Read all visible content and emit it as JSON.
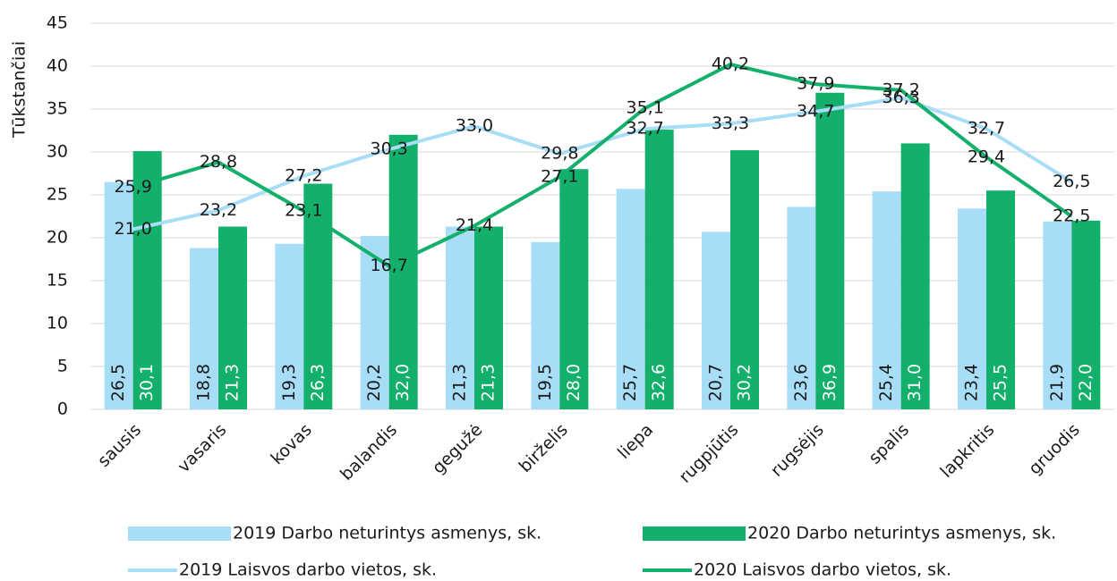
{
  "chart_data": {
    "type": "combo",
    "y_label": "Tūkstančiai",
    "categories": [
      "sausis",
      "vasaris",
      "kovas",
      "balandis",
      "gegužė",
      "birželis",
      "liepa",
      "rugpjūtis",
      "rugsėjis",
      "spalis",
      "lapkritis",
      "gruodis"
    ],
    "ylim": [
      0,
      45
    ],
    "yticks": [
      0,
      5,
      10,
      15,
      20,
      25,
      30,
      35,
      40,
      45
    ],
    "grid": true,
    "series": [
      {
        "name": "2019 Darbo neturintys asmenys, sk.",
        "type": "bar",
        "color": "#a8ddf8",
        "values": [
          26.5,
          18.8,
          19.3,
          20.2,
          21.3,
          19.5,
          25.7,
          20.7,
          23.6,
          25.4,
          23.4,
          21.9
        ],
        "value_labels": [
          "26,5",
          "18,8",
          "19,3",
          "20,2",
          "21,3",
          "19,5",
          "25,7",
          "20,7",
          "23,6",
          "25,4",
          "23,4",
          "21,9"
        ]
      },
      {
        "name": "2020 Darbo neturintys asmenys, sk.",
        "type": "bar",
        "color": "#13b06b",
        "values": [
          30.1,
          21.3,
          26.3,
          32.0,
          21.3,
          28.0,
          32.6,
          30.2,
          36.9,
          31.0,
          25.5,
          22.0
        ],
        "value_labels": [
          "30,1",
          "21,3",
          "26,3",
          "32,0",
          "21,3",
          "28,0",
          "32,6",
          "30,2",
          "36,9",
          "31,0",
          "25,5",
          "22,0"
        ]
      },
      {
        "name": "2019 Laisvos darbo vietos, sk.",
        "type": "line",
        "color": "#a8ddf8",
        "values": [
          21.0,
          23.2,
          27.2,
          30.3,
          33.0,
          29.8,
          32.7,
          33.3,
          34.7,
          36.3,
          32.7,
          26.5
        ],
        "value_labels": [
          "21,0",
          "23,2",
          "27,2",
          "30,3",
          "33,0",
          "29,8",
          "32,7",
          "33,3",
          "34,7",
          "36,3",
          "32,7",
          "26,5"
        ]
      },
      {
        "name": "2020 Laisvos darbo vietos, sk.",
        "type": "line",
        "color": "#13b06b",
        "values": [
          25.9,
          28.8,
          23.1,
          16.7,
          21.4,
          27.1,
          35.1,
          40.2,
          37.9,
          37.2,
          29.4,
          22.5
        ],
        "value_labels": [
          "25,9",
          "28,8",
          "23,1",
          "16,7",
          "21,4",
          "27,1",
          "35,1",
          "40,2",
          "37,9",
          "37,2",
          "29,4",
          "22,5"
        ]
      }
    ]
  }
}
